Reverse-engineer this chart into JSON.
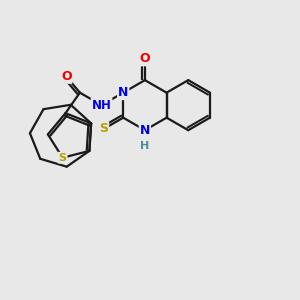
{
  "bg": "#e8e8e8",
  "bond_color": "#1a1a1a",
  "S_color": "#b8a000",
  "N_color": "#0000ee",
  "O_color": "#ee0000",
  "H_color": "#4a9090",
  "lw": 1.6,
  "figsize": [
    3.0,
    3.0
  ],
  "dpi": 100,
  "xlim": [
    0,
    10
  ],
  "ylim": [
    0,
    10
  ]
}
